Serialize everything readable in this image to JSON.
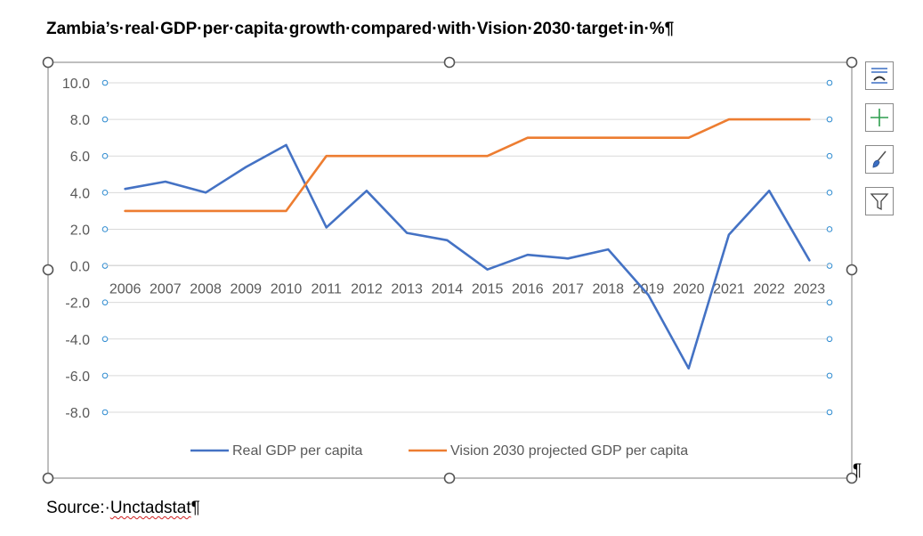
{
  "doc": {
    "title": "Zambia’s·real·GDP·per·capita·growth·compared·with·Vision·2030·target·in·%¶",
    "source_prefix": "Source:·",
    "source_name": "Unctadstat",
    "source_suffix": "¶",
    "paragraph_mark": "¶"
  },
  "toolbar": {
    "items": [
      {
        "name": "chart-layout-icon"
      },
      {
        "name": "chart-elements-plus-icon"
      },
      {
        "name": "chart-styles-brush-icon"
      },
      {
        "name": "chart-filter-icon"
      }
    ]
  },
  "chart_data": {
    "type": "line",
    "title": "",
    "xlabel": "",
    "ylabel": "",
    "categories": [
      "2006",
      "2007",
      "2008",
      "2009",
      "2010",
      "2011",
      "2012",
      "2013",
      "2014",
      "2015",
      "2016",
      "2017",
      "2018",
      "2019",
      "2020",
      "2021",
      "2022",
      "2023"
    ],
    "ylim": [
      -8.0,
      10.0
    ],
    "yticks": [
      "10.0",
      "8.0",
      "6.0",
      "4.0",
      "2.0",
      "0.0",
      "-2.0",
      "-4.0",
      "-6.0",
      "-8.0"
    ],
    "grid": true,
    "legend": "bottom",
    "series": [
      {
        "name": "Real GDP per capita",
        "color": "#4472c4",
        "values": [
          4.2,
          4.6,
          4.0,
          5.4,
          6.6,
          2.1,
          4.1,
          1.8,
          1.4,
          -0.2,
          0.6,
          0.4,
          0.9,
          -1.6,
          -5.6,
          1.7,
          4.1,
          0.3
        ]
      },
      {
        "name": "Vision 2030 projected GDP per capita",
        "color": "#ed7d31",
        "values": [
          3.0,
          3.0,
          3.0,
          3.0,
          3.0,
          6.0,
          6.0,
          6.0,
          6.0,
          6.0,
          7.0,
          7.0,
          7.0,
          7.0,
          7.0,
          8.0,
          8.0,
          8.0
        ]
      }
    ]
  }
}
